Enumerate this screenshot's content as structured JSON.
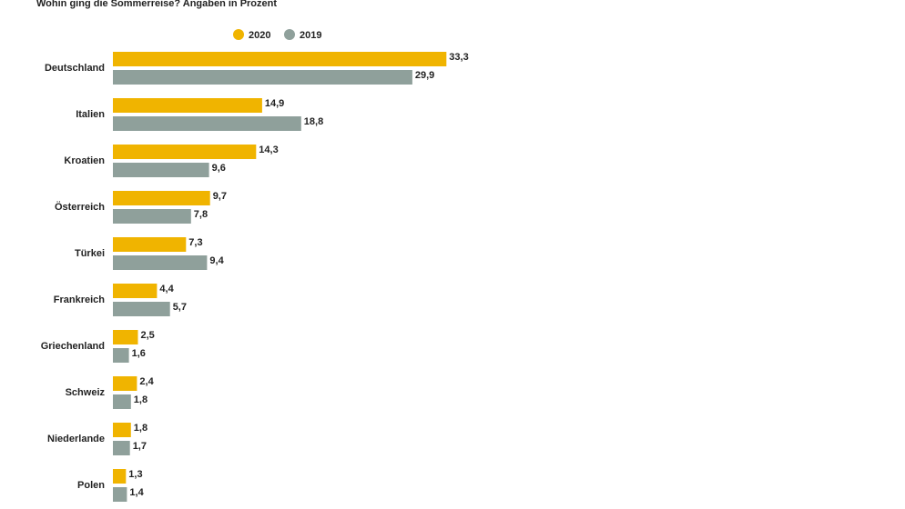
{
  "chart_data": {
    "type": "hbar",
    "title": "Wohin ging die Sommerreise? Angaben in Prozent",
    "categories": [
      "Deutschland",
      "Italien",
      "Kroatien",
      "Österreich",
      "Türkei",
      "Frankreich",
      "Griechenland",
      "Schweiz",
      "Niederlande",
      "Polen"
    ],
    "series": [
      {
        "name": "2020",
        "color": "#f0b400",
        "values": [
          33.3,
          14.9,
          14.3,
          9.7,
          7.3,
          4.4,
          2.5,
          2.4,
          1.8,
          1.3
        ],
        "value_labels": [
          "33,3",
          "14,9",
          "14,3",
          "9,7",
          "7,3",
          "4,4",
          "2,5",
          "2,4",
          "1,8",
          "1,3"
        ]
      },
      {
        "name": "2019",
        "color": "#8fa09b",
        "values": [
          29.9,
          18.8,
          9.6,
          7.8,
          9.4,
          5.7,
          1.6,
          1.8,
          1.7,
          1.4
        ],
        "value_labels": [
          "29,9",
          "18,8",
          "9,6",
          "7,8",
          "9,4",
          "5,7",
          "1,6",
          "1,8",
          "1,7",
          "1,4"
        ]
      }
    ]
  }
}
